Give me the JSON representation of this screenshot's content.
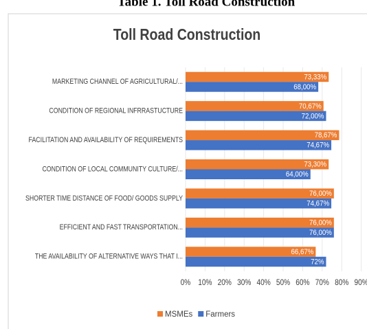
{
  "caption": "Table 1. Toll Road Construction",
  "chart_data": {
    "type": "hbar",
    "title": "Toll Road Construction",
    "categories": [
      "MARKETING CHANNEL OF AGRICULTURAL/...",
      "CONDITION OF REGIONAL INFRRASTUCTURE",
      "FACILITATION AND AVAILABILITY OF REQUIREMENTS",
      "CONDITION OF LOCAL COMMUNITY CULTURE/...",
      "SHORTER TIME DISTANCE OF FOOD/ GOODS SUPPLY",
      "EFFICIENT AND FAST TRANSPORTATION...",
      "THE AVAILABILITY OF ALTERNATIVE WAYS THAT I..."
    ],
    "series": [
      {
        "name": "MSMEs",
        "color": "#ed7d31",
        "values": [
          73.33,
          70.67,
          78.67,
          73.3,
          76.0,
          76.0,
          66.67
        ],
        "value_labels": [
          "73,33%",
          "70,67%",
          "78,67%",
          "73,30%",
          "76,00%",
          "76,00%",
          "66,67%"
        ]
      },
      {
        "name": "Farmers",
        "color": "#4472c4",
        "values": [
          68.0,
          72.0,
          74.67,
          64.0,
          74.67,
          76.0,
          72
        ],
        "value_labels": [
          "68,00%",
          "72,00%",
          "74,67%",
          "64,00%",
          "74,67%",
          "76,00%",
          "72%"
        ]
      }
    ],
    "xlim": [
      0,
      90
    ],
    "xticks": [
      {
        "value": 0,
        "label": "0%"
      },
      {
        "value": 10,
        "label": "10%"
      },
      {
        "value": 20,
        "label": "20%"
      },
      {
        "value": 30,
        "label": "30%"
      },
      {
        "value": 40,
        "label": "40%"
      },
      {
        "value": 50,
        "label": "50%"
      },
      {
        "value": 60,
        "label": "60%"
      },
      {
        "value": 70,
        "label": "70%"
      },
      {
        "value": 80,
        "label": "80%"
      },
      {
        "value": 90,
        "label": "90%"
      }
    ],
    "grid": true,
    "legend": "bottom"
  }
}
